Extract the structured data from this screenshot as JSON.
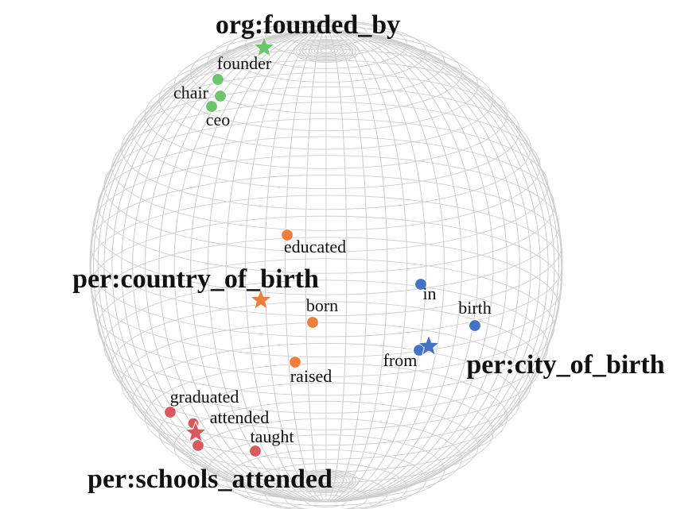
{
  "diagram": {
    "relations": [
      {
        "name": "org:founded_by",
        "color": "#6cc46c"
      },
      {
        "name": "per:country_of_birth",
        "color": "#ef7f3a"
      },
      {
        "name": "per:city_of_birth",
        "color": "#4472c4"
      },
      {
        "name": "per:schools_attended",
        "color": "#d9595f"
      }
    ],
    "words": [
      {
        "text": "founder",
        "relation": "org:founded_by"
      },
      {
        "text": "chair",
        "relation": "org:founded_by"
      },
      {
        "text": "ceo",
        "relation": "org:founded_by"
      },
      {
        "text": "educated",
        "relation": "per:country_of_birth"
      },
      {
        "text": "born",
        "relation": "per:country_of_birth"
      },
      {
        "text": "raised",
        "relation": "per:country_of_birth"
      },
      {
        "text": "in",
        "relation": "per:city_of_birth"
      },
      {
        "text": "birth",
        "relation": "per:city_of_birth"
      },
      {
        "text": "from",
        "relation": "per:city_of_birth"
      },
      {
        "text": "graduated",
        "relation": "per:schools_attended"
      },
      {
        "text": "attended",
        "relation": "per:schools_attended"
      },
      {
        "text": "taught",
        "relation": "per:schools_attended"
      }
    ],
    "sphere_color": "#cfcfcf"
  }
}
